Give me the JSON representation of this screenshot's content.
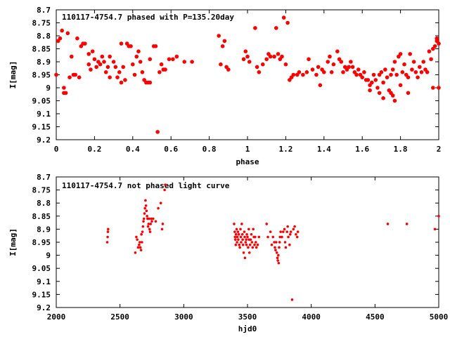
{
  "colors": {
    "points": "#ff0000",
    "axes": "#000000",
    "background": "#ffffff"
  },
  "chart_data": [
    {
      "type": "scatter",
      "title": "110117-4754.7 phased with P=135.20day",
      "xlabel": "phase",
      "ylabel": "I[mag]",
      "xlim": [
        0,
        2
      ],
      "ylim": [
        9.2,
        8.7
      ],
      "y_inverted": true,
      "x_ticks": [
        "0",
        "0.2",
        "0.4",
        "0.6",
        "0.8",
        "1",
        "1.2",
        "1.4",
        "1.6",
        "1.8",
        "2"
      ],
      "y_ticks": [
        "8.7",
        "8.75",
        "8.8",
        "8.85",
        "8.9",
        "8.95",
        "9",
        "9.05",
        "9.1",
        "9.15",
        "9.2"
      ],
      "points": [
        [
          0.0,
          8.95
        ],
        [
          0.01,
          8.82
        ],
        [
          0.02,
          8.81
        ],
        [
          0.03,
          8.78
        ],
        [
          0.04,
          9.0
        ],
        [
          0.04,
          9.02
        ],
        [
          0.05,
          9.02
        ],
        [
          0.06,
          8.79
        ],
        [
          0.07,
          8.96
        ],
        [
          0.08,
          8.88
        ],
        [
          0.09,
          8.95
        ],
        [
          0.1,
          8.95
        ],
        [
          0.11,
          8.81
        ],
        [
          0.12,
          8.96
        ],
        [
          0.13,
          8.84
        ],
        [
          0.14,
          8.83
        ],
        [
          0.15,
          8.83
        ],
        [
          0.17,
          8.87
        ],
        [
          0.17,
          8.91
        ],
        [
          0.18,
          8.93
        ],
        [
          0.19,
          8.86
        ],
        [
          0.2,
          8.89
        ],
        [
          0.21,
          8.92
        ],
        [
          0.22,
          8.9
        ],
        [
          0.23,
          8.91
        ],
        [
          0.24,
          8.88
        ],
        [
          0.25,
          8.9
        ],
        [
          0.26,
          8.94
        ],
        [
          0.27,
          8.92
        ],
        [
          0.28,
          8.96
        ],
        [
          0.28,
          8.88
        ],
        [
          0.3,
          8.9
        ],
        [
          0.31,
          8.92
        ],
        [
          0.32,
          8.96
        ],
        [
          0.33,
          8.94
        ],
        [
          0.34,
          8.83
        ],
        [
          0.34,
          8.98
        ],
        [
          0.35,
          8.92
        ],
        [
          0.36,
          8.97
        ],
        [
          0.37,
          8.83
        ],
        [
          0.38,
          8.84
        ],
        [
          0.39,
          8.84
        ],
        [
          0.4,
          8.91
        ],
        [
          0.41,
          8.95
        ],
        [
          0.42,
          8.88
        ],
        [
          0.43,
          8.86
        ],
        [
          0.44,
          8.9
        ],
        [
          0.45,
          8.94
        ],
        [
          0.46,
          8.97
        ],
        [
          0.47,
          8.98
        ],
        [
          0.48,
          8.98
        ],
        [
          0.49,
          8.98
        ],
        [
          0.49,
          8.89
        ],
        [
          0.51,
          8.84
        ],
        [
          0.52,
          8.84
        ],
        [
          0.53,
          9.17
        ],
        [
          0.54,
          8.94
        ],
        [
          0.55,
          8.91
        ],
        [
          0.56,
          8.93
        ],
        [
          0.57,
          8.93
        ],
        [
          0.59,
          8.89
        ],
        [
          0.61,
          8.89
        ],
        [
          0.63,
          8.88
        ],
        [
          0.67,
          8.9
        ],
        [
          0.71,
          8.9
        ],
        [
          0.85,
          8.8
        ],
        [
          0.86,
          8.91
        ],
        [
          0.87,
          8.84
        ],
        [
          0.88,
          8.82
        ],
        [
          0.89,
          8.92
        ],
        [
          0.9,
          8.93
        ],
        [
          0.98,
          8.89
        ],
        [
          0.99,
          8.86
        ],
        [
          1.0,
          8.88
        ],
        [
          1.01,
          8.9
        ],
        [
          1.04,
          8.77
        ],
        [
          1.05,
          8.92
        ],
        [
          1.06,
          8.94
        ],
        [
          1.08,
          8.91
        ],
        [
          1.1,
          8.89
        ],
        [
          1.11,
          8.87
        ],
        [
          1.12,
          8.88
        ],
        [
          1.14,
          8.88
        ],
        [
          1.15,
          8.77
        ],
        [
          1.16,
          8.87
        ],
        [
          1.17,
          8.89
        ],
        [
          1.18,
          8.88
        ],
        [
          1.19,
          8.73
        ],
        [
          1.2,
          8.91
        ],
        [
          1.21,
          8.75
        ],
        [
          1.22,
          8.97
        ],
        [
          1.23,
          8.96
        ],
        [
          1.24,
          8.95
        ],
        [
          1.26,
          8.95
        ],
        [
          1.27,
          8.94
        ],
        [
          1.29,
          8.95
        ],
        [
          1.31,
          8.94
        ],
        [
          1.32,
          8.89
        ],
        [
          1.34,
          8.93
        ],
        [
          1.36,
          8.95
        ],
        [
          1.37,
          8.92
        ],
        [
          1.38,
          8.99
        ],
        [
          1.39,
          8.93
        ],
        [
          1.4,
          8.94
        ],
        [
          1.42,
          8.9
        ],
        [
          1.43,
          8.88
        ],
        [
          1.44,
          8.94
        ],
        [
          1.45,
          8.91
        ],
        [
          1.47,
          8.86
        ],
        [
          1.48,
          8.89
        ],
        [
          1.49,
          8.9
        ],
        [
          1.5,
          8.94
        ],
        [
          1.51,
          8.92
        ],
        [
          1.52,
          8.93
        ],
        [
          1.53,
          8.92
        ],
        [
          1.54,
          8.9
        ],
        [
          1.55,
          8.92
        ],
        [
          1.56,
          8.94
        ],
        [
          1.57,
          8.95
        ],
        [
          1.58,
          8.93
        ],
        [
          1.59,
          8.95
        ],
        [
          1.6,
          8.96
        ],
        [
          1.61,
          8.94
        ],
        [
          1.62,
          8.97
        ],
        [
          1.63,
          8.97
        ],
        [
          1.64,
          8.99
        ],
        [
          1.64,
          9.01
        ],
        [
          1.65,
          8.98
        ],
        [
          1.66,
          8.95
        ],
        [
          1.67,
          8.97
        ],
        [
          1.68,
          9.0
        ],
        [
          1.69,
          8.95
        ],
        [
          1.69,
          9.02
        ],
        [
          1.7,
          8.94
        ],
        [
          1.71,
          8.98
        ],
        [
          1.71,
          9.04
        ],
        [
          1.72,
          8.93
        ],
        [
          1.73,
          8.96
        ],
        [
          1.74,
          9.01
        ],
        [
          1.75,
          8.95
        ],
        [
          1.75,
          9.02
        ],
        [
          1.76,
          8.93
        ],
        [
          1.76,
          9.03
        ],
        [
          1.77,
          8.9
        ],
        [
          1.77,
          9.05
        ],
        [
          1.78,
          8.95
        ],
        [
          1.79,
          8.88
        ],
        [
          1.8,
          8.99
        ],
        [
          1.8,
          8.87
        ],
        [
          1.81,
          8.94
        ],
        [
          1.82,
          8.91
        ],
        [
          1.83,
          8.95
        ],
        [
          1.84,
          8.96
        ],
        [
          1.84,
          9.02
        ],
        [
          1.85,
          8.87
        ],
        [
          1.86,
          8.93
        ],
        [
          1.87,
          8.9
        ],
        [
          1.88,
          8.94
        ],
        [
          1.89,
          8.96
        ],
        [
          1.9,
          8.92
        ],
        [
          1.91,
          8.94
        ],
        [
          1.92,
          8.9
        ],
        [
          1.93,
          8.93
        ],
        [
          1.94,
          8.94
        ],
        [
          1.95,
          8.86
        ],
        [
          1.96,
          8.89
        ],
        [
          1.97,
          8.85
        ],
        [
          1.97,
          9.0
        ],
        [
          1.98,
          8.84
        ],
        [
          1.99,
          8.81
        ],
        [
          1.99,
          8.82
        ],
        [
          2.0,
          9.0
        ],
        [
          2.0,
          8.83
        ]
      ]
    },
    {
      "type": "scatter",
      "title": "110117-4754.7 not phased light curve",
      "xlabel": "hjd0",
      "ylabel": "I[mag]",
      "xlim": [
        2000,
        5000
      ],
      "ylim": [
        9.2,
        8.7
      ],
      "y_inverted": true,
      "x_ticks": [
        "2000",
        "2500",
        "3000",
        "3500",
        "4000",
        "4500",
        "5000"
      ],
      "y_ticks": [
        "8.7",
        "8.75",
        "8.8",
        "8.85",
        "8.9",
        "8.95",
        "9",
        "9.05",
        "9.1",
        "9.15",
        "9.2"
      ],
      "points": [
        [
          2400,
          8.95
        ],
        [
          2403,
          8.93
        ],
        [
          2405,
          8.91
        ],
        [
          2407,
          8.9
        ],
        [
          2620,
          8.99
        ],
        [
          2628,
          8.93
        ],
        [
          2635,
          8.94
        ],
        [
          2642,
          8.97
        ],
        [
          2650,
          8.96
        ],
        [
          2655,
          8.95
        ],
        [
          2660,
          8.97
        ],
        [
          2665,
          8.98
        ],
        [
          2668,
          8.92
        ],
        [
          2672,
          8.95
        ],
        [
          2676,
          8.91
        ],
        [
          2680,
          8.89
        ],
        [
          2684,
          8.87
        ],
        [
          2688,
          8.86
        ],
        [
          2692,
          8.84
        ],
        [
          2696,
          8.82
        ],
        [
          2700,
          8.79
        ],
        [
          2704,
          8.81
        ],
        [
          2708,
          8.83
        ],
        [
          2712,
          8.85
        ],
        [
          2716,
          8.86
        ],
        [
          2720,
          8.89
        ],
        [
          2724,
          8.88
        ],
        [
          2728,
          8.86
        ],
        [
          2732,
          8.9
        ],
        [
          2736,
          8.91
        ],
        [
          2740,
          8.88
        ],
        [
          2745,
          8.86
        ],
        [
          2750,
          8.87
        ],
        [
          2760,
          8.86
        ],
        [
          2780,
          8.87
        ],
        [
          2800,
          8.82
        ],
        [
          2820,
          8.8
        ],
        [
          2830,
          8.9
        ],
        [
          2835,
          8.88
        ],
        [
          2850,
          8.75
        ],
        [
          2855,
          8.73
        ],
        [
          3395,
          8.88
        ],
        [
          3400,
          8.91
        ],
        [
          3402,
          8.93
        ],
        [
          3405,
          8.94
        ],
        [
          3408,
          8.96
        ],
        [
          3410,
          8.92
        ],
        [
          3415,
          8.9
        ],
        [
          3418,
          8.95
        ],
        [
          3420,
          8.93
        ],
        [
          3425,
          8.91
        ],
        [
          3428,
          8.94
        ],
        [
          3432,
          8.92
        ],
        [
          3435,
          8.96
        ],
        [
          3440,
          8.97
        ],
        [
          3445,
          8.9
        ],
        [
          3448,
          8.93
        ],
        [
          3450,
          8.95
        ],
        [
          3455,
          8.88
        ],
        [
          3460,
          8.92
        ],
        [
          3462,
          8.94
        ],
        [
          3465,
          8.96
        ],
        [
          3470,
          8.99
        ],
        [
          3475,
          8.91
        ],
        [
          3478,
          8.93
        ],
        [
          3480,
          9.01
        ],
        [
          3485,
          8.95
        ],
        [
          3490,
          8.94
        ],
        [
          3492,
          8.96
        ],
        [
          3495,
          8.92
        ],
        [
          3500,
          8.93
        ],
        [
          3505,
          8.97
        ],
        [
          3510,
          8.9
        ],
        [
          3512,
          8.94
        ],
        [
          3515,
          8.99
        ],
        [
          3520,
          8.96
        ],
        [
          3525,
          8.94
        ],
        [
          3530,
          8.92
        ],
        [
          3535,
          8.95
        ],
        [
          3540,
          8.97
        ],
        [
          3545,
          8.9
        ],
        [
          3550,
          8.93
        ],
        [
          3555,
          8.96
        ],
        [
          3560,
          8.93
        ],
        [
          3565,
          8.95
        ],
        [
          3570,
          8.97
        ],
        [
          3580,
          8.96
        ],
        [
          3590,
          8.93
        ],
        [
          3650,
          8.88
        ],
        [
          3660,
          8.93
        ],
        [
          3680,
          8.91
        ],
        [
          3690,
          8.96
        ],
        [
          3700,
          8.93
        ],
        [
          3710,
          8.95
        ],
        [
          3715,
          8.97
        ],
        [
          3720,
          8.98
        ],
        [
          3725,
          8.95
        ],
        [
          3730,
          8.99
        ],
        [
          3735,
          9.01
        ],
        [
          3738,
          9.02
        ],
        [
          3742,
          9.0
        ],
        [
          3745,
          9.03
        ],
        [
          3748,
          8.97
        ],
        [
          3752,
          8.95
        ],
        [
          3755,
          8.93
        ],
        [
          3760,
          8.91
        ],
        [
          3770,
          8.93
        ],
        [
          3780,
          8.91
        ],
        [
          3790,
          8.9
        ],
        [
          3795,
          8.95
        ],
        [
          3800,
          8.97
        ],
        [
          3810,
          8.91
        ],
        [
          3815,
          8.89
        ],
        [
          3820,
          8.93
        ],
        [
          3830,
          8.96
        ],
        [
          3835,
          8.92
        ],
        [
          3840,
          8.91
        ],
        [
          3850,
          9.17
        ],
        [
          3860,
          8.9
        ],
        [
          3870,
          8.89
        ],
        [
          3880,
          8.92
        ],
        [
          3890,
          8.93
        ],
        [
          3895,
          8.91
        ],
        [
          4600,
          8.88
        ],
        [
          4750,
          8.88
        ],
        [
          4970,
          8.9
        ],
        [
          5000,
          8.85
        ]
      ]
    }
  ]
}
